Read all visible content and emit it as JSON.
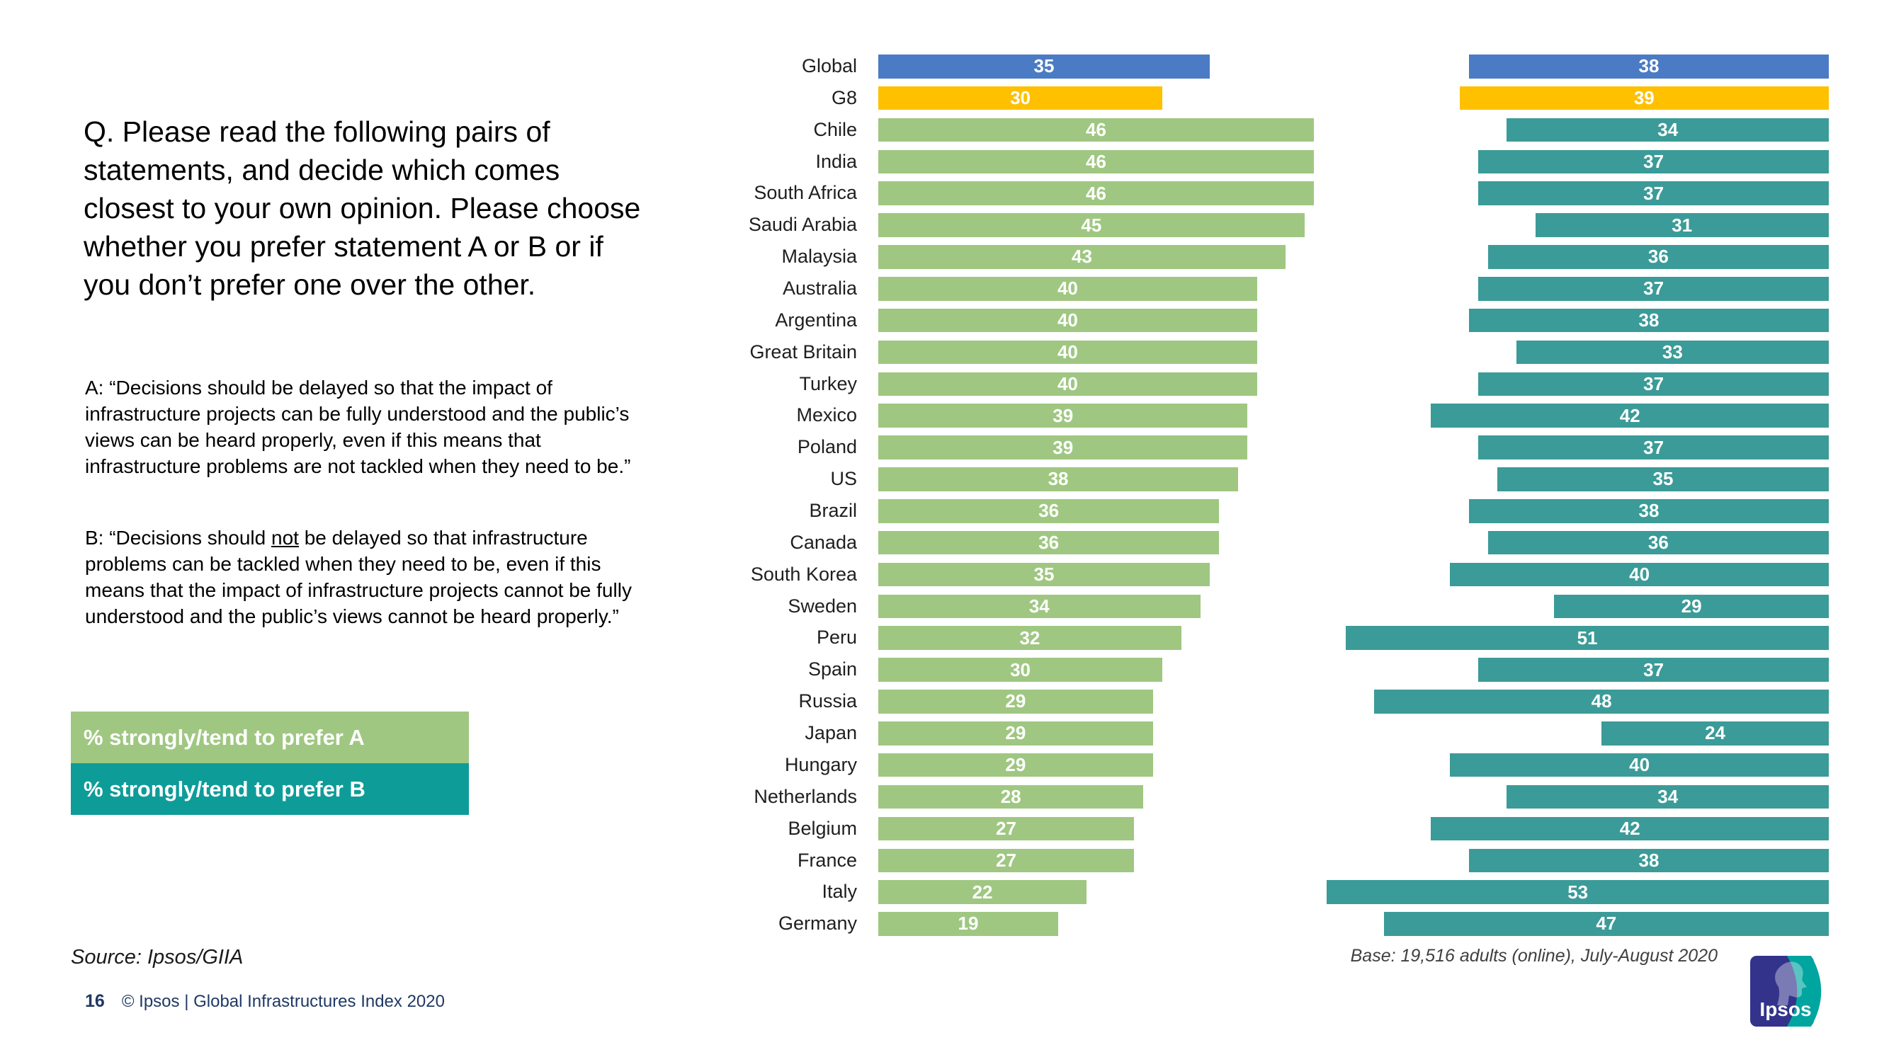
{
  "left_panel": {
    "question": "Q. Please read the following pairs of statements, and decide which comes closest to your own opinion. Please choose whether you prefer statement A or B or if you don’t prefer one over the other.",
    "statement_a": "A: “Decisions should be delayed so that the impact of infrastructure projects can be fully understood and the public’s views can be heard properly, even if this means that infrastructure problems are not tackled when they need to be.”",
    "statement_b_prefix": "B: “Decisions should ",
    "statement_b_underlined": "not",
    "statement_b_suffix": " be delayed so that infrastructure problems can be tackled when they need to be, even if this means that the impact of infrastructure projects cannot be fully understood and the public’s views cannot be heard properly.”"
  },
  "legend": {
    "a": {
      "label": "% strongly/tend to prefer A",
      "color": "#9FC781"
    },
    "b": {
      "label": "% strongly/tend to prefer B",
      "color": "#0E9C99"
    }
  },
  "footer": {
    "source": "Source: Ipsos/GIIA",
    "page_number": "16",
    "copyright": "© Ipsos | Global Infrastructures Index 2020",
    "base_note": "Base: 19,516 adults (online), July-August 2020"
  },
  "logo": {
    "brand": "Ipsos",
    "primary_color": "#33338C",
    "accent_color": "#00A5A0"
  },
  "chart_data": {
    "type": "bar",
    "orientation": "horizontal_paired",
    "title": "",
    "categories": [
      "Global",
      "G8",
      "Chile",
      "India",
      "South Africa",
      "Saudi Arabia",
      "Malaysia",
      "Australia",
      "Argentina",
      "Great Britain",
      "Turkey",
      "Mexico",
      "Poland",
      "US",
      "Brazil",
      "Canada",
      "South Korea",
      "Sweden",
      "Peru",
      "Spain",
      "Russia",
      "Japan",
      "Hungary",
      "Netherlands",
      "Belgium",
      "France",
      "Italy",
      "Germany"
    ],
    "series": [
      {
        "name": "% strongly/tend to prefer A",
        "color": "#9FC781",
        "values": [
          35,
          30,
          46,
          46,
          46,
          45,
          43,
          40,
          40,
          40,
          40,
          39,
          39,
          38,
          36,
          36,
          35,
          34,
          32,
          30,
          29,
          29,
          29,
          28,
          27,
          27,
          22,
          19
        ]
      },
      {
        "name": "% strongly/tend to prefer B",
        "color": "#3B9B98",
        "values": [
          38,
          39,
          34,
          37,
          37,
          31,
          36,
          37,
          38,
          33,
          37,
          42,
          37,
          35,
          38,
          36,
          40,
          29,
          51,
          37,
          48,
          24,
          40,
          34,
          42,
          38,
          53,
          47
        ]
      }
    ],
    "row_colors": {
      "Global": "#4A7BC4",
      "G8": "#FFC000"
    },
    "value_label_style": "inside-center-white-bold",
    "xmax": 55,
    "grid": false,
    "legend_position": "left-panel"
  }
}
